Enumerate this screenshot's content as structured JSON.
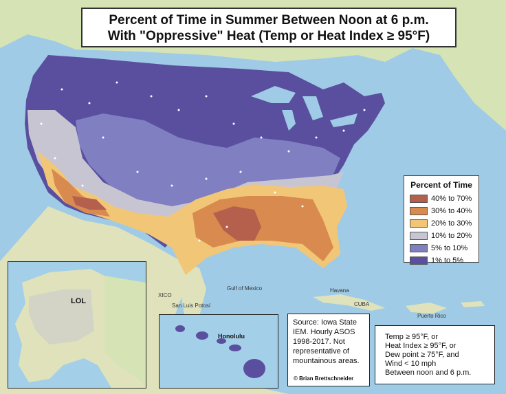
{
  "title": {
    "line1": "Percent of Time in Summer Between Noon at 6 p.m.",
    "line2": "With \"Oppressive\" Heat (Temp or Heat Index ≥ 95°F)"
  },
  "legend": {
    "title": "Percent of Time",
    "items": [
      {
        "label": "40% to 70%",
        "color": "#b5604d"
      },
      {
        "label": "30% to 40%",
        "color": "#d98a4e"
      },
      {
        "label": "20% to 30%",
        "color": "#f1c676"
      },
      {
        "label": "10% to 20%",
        "color": "#c8c5d2"
      },
      {
        "label": "5% to 10%",
        "color": "#7f7fc2"
      },
      {
        "label": "1% to 5%",
        "color": "#5a4f9e"
      }
    ]
  },
  "source": {
    "text": "Source: Iowa State IEM. Hourly ASOS 1998-2017. Not representative of mountainous areas.",
    "credit": "© Brian Brettschneider"
  },
  "criteria": {
    "lines": [
      "Temp ≥ 95°F, or",
      "Heat Index ≥ 95°F, or",
      "Dew point ≥ 75°F, and",
      "Wind < 10 mph",
      "Between noon and 6 p.m."
    ]
  },
  "inset_labels": {
    "alaska": "LOL",
    "hawaii": "Honolulu"
  },
  "place_labels": {
    "mexico": "XICO",
    "gulf": "Gulf of Mexico",
    "cuba": "CUBA",
    "havana": "Havana",
    "puerto_rico": "Puerto Rico",
    "san_luis": "San Luis Potosí"
  },
  "colors": {
    "ocean": "#9fcbe6",
    "land_other": "#e6e4c6",
    "land_green": "#cfe0b0"
  }
}
